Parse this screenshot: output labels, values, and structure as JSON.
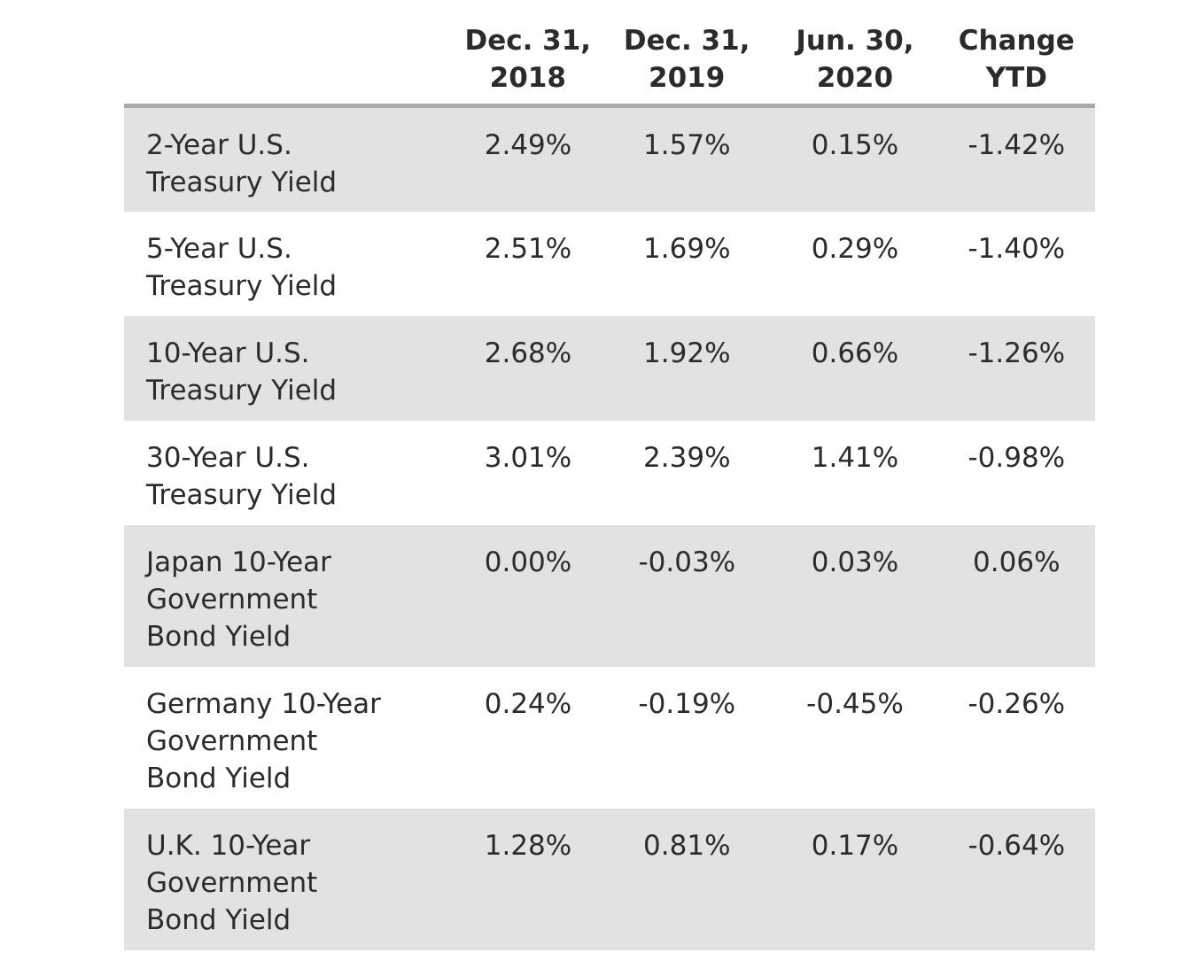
{
  "chart_data": {
    "type": "table",
    "columns": [
      "Dec. 31,\n2018",
      "Dec. 31,\n2019",
      "Jun. 30,\n2020",
      "Change\nYTD"
    ],
    "rows": [
      {
        "label": "2-Year U.S.\nTreasury Yield",
        "values": [
          "2.49%",
          "1.57%",
          "0.15%",
          "-1.42%"
        ]
      },
      {
        "label": "5-Year U.S.\nTreasury Yield",
        "values": [
          "2.51%",
          "1.69%",
          "0.29%",
          "-1.40%"
        ]
      },
      {
        "label": "10-Year U.S.\nTreasury Yield",
        "values": [
          "2.68%",
          "1.92%",
          "0.66%",
          "-1.26%"
        ]
      },
      {
        "label": "30-Year U.S.\nTreasury Yield",
        "values": [
          "3.01%",
          "2.39%",
          "1.41%",
          "-0.98%"
        ]
      },
      {
        "label": "Japan 10-Year\nGovernment\nBond Yield",
        "values": [
          "0.00%",
          "-0.03%",
          "0.03%",
          "0.06%"
        ]
      },
      {
        "label": "Germany 10-Year\nGovernment\nBond Yield",
        "values": [
          "0.24%",
          "-0.19%",
          "-0.45%",
          "-0.26%"
        ]
      },
      {
        "label": "U.K. 10-Year\nGovernment\nBond Yield",
        "values": [
          "1.28%",
          "0.81%",
          "0.17%",
          "-0.64%"
        ]
      }
    ],
    "colors": {
      "shaded_row": "#e2e2e4",
      "header_rule": "#a9a9a9",
      "text": "#2b2b2b"
    }
  }
}
